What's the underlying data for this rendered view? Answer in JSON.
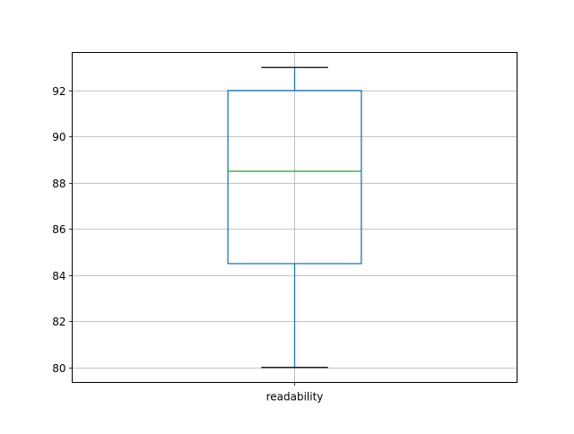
{
  "chart_data": {
    "type": "box",
    "categories": [
      "readability"
    ],
    "boxes": [
      {
        "label": "readability",
        "whisker_low": 80,
        "q1": 84.5,
        "median": 88.5,
        "q3": 92,
        "whisker_high": 93
      }
    ],
    "yticks": [
      80,
      82,
      84,
      86,
      88,
      90,
      92
    ],
    "ytick_labels": [
      "80",
      "82",
      "84",
      "86",
      "88",
      "90",
      "92"
    ],
    "ylim": [
      79.35,
      93.65
    ],
    "grid": true,
    "title": "",
    "xlabel": "",
    "ylabel": "",
    "colors": {
      "box": "#1f77b4",
      "median": "#2ca02c",
      "whisker_cap": "#000000",
      "grid": "#b0b0b0"
    }
  }
}
